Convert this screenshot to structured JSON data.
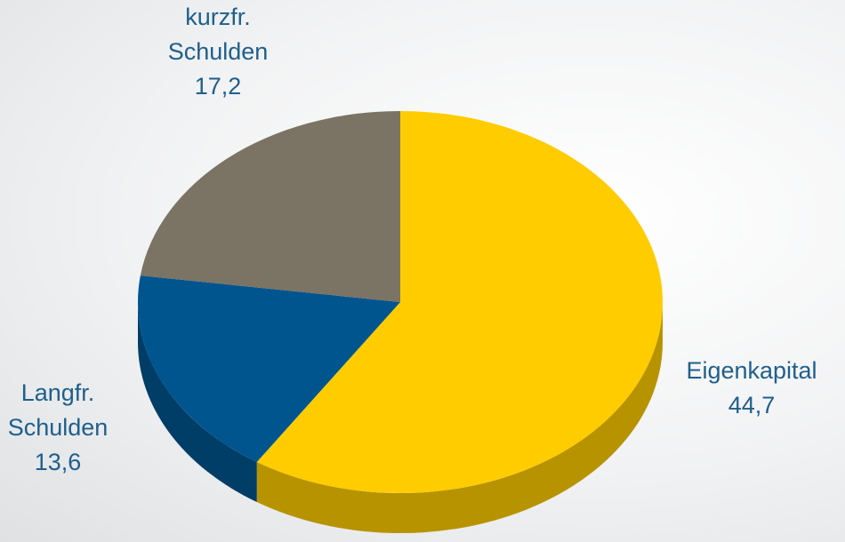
{
  "chart_data": {
    "type": "pie",
    "categories": [
      "Eigenkapital",
      "Langfr. Schulden",
      "kurzfr. Schulden"
    ],
    "values": [
      44.7,
      13.6,
      17.2
    ],
    "value_labels": [
      "44,7",
      "13,6",
      "17,2"
    ],
    "colors": [
      "#ffcc00",
      "#00558f",
      "#7b7363"
    ]
  }
}
